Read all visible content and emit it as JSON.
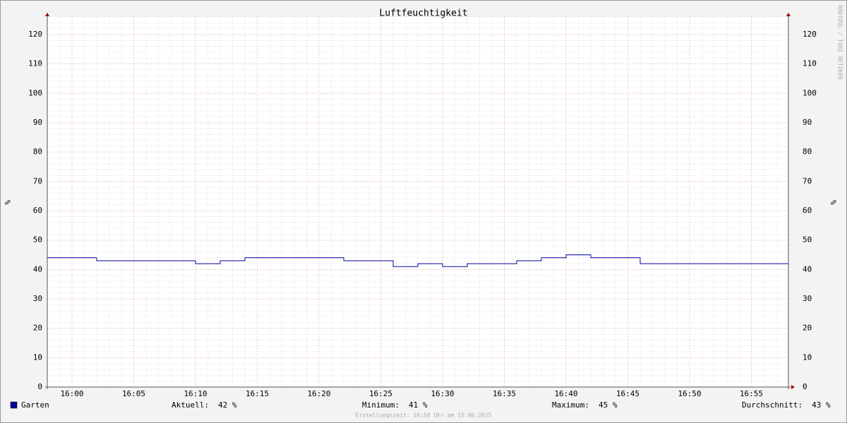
{
  "chart_data": {
    "type": "line",
    "title": "Luftfeuchtigkeit",
    "ylabel": "%",
    "x": [
      "15:58",
      "16:02",
      "16:10",
      "16:12",
      "16:14",
      "16:22",
      "16:26",
      "16:28",
      "16:30",
      "16:32",
      "16:36",
      "16:38",
      "16:40",
      "16:42",
      "16:46",
      "16:58"
    ],
    "series": [
      {
        "name": "Garten",
        "color": "#000099",
        "values": [
          44,
          43,
          42,
          43,
          44,
          43,
          41,
          42,
          41,
          42,
          43,
          44,
          45,
          44,
          42,
          42
        ]
      }
    ],
    "step": true,
    "xlim": [
      "15:58",
      "16:58"
    ],
    "xticks": [
      "16:00",
      "16:05",
      "16:10",
      "16:15",
      "16:20",
      "16:25",
      "16:30",
      "16:35",
      "16:40",
      "16:45",
      "16:50",
      "16:55"
    ],
    "ylim": [
      0,
      126
    ],
    "yticks": [
      0,
      10,
      20,
      30,
      40,
      50,
      60,
      70,
      80,
      90,
      100,
      110,
      120
    ],
    "grid": true,
    "stats": [
      {
        "label": "Aktuell:",
        "value": "42 %"
      },
      {
        "label": "Minimum:",
        "value": "41 %"
      },
      {
        "label": "Maximum:",
        "value": "45 %"
      },
      {
        "label": "Durchschnitt:",
        "value": "43 %"
      }
    ],
    "watermark": "RRDTOOL / TOBI OETIKER",
    "footer": "Erstellungszeit: 16:58 Uhr am 15.06.2025"
  }
}
